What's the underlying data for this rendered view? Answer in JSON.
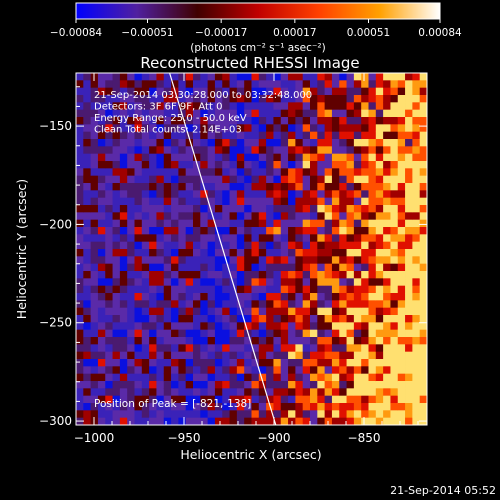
{
  "chart_data": {
    "type": "heatmap",
    "title": "Reconstructed RHESSI Image",
    "xlabel": "Heliocentric X (arcsec)",
    "ylabel": "Heliocentric Y (arcsec)",
    "xlim": [
      -1010,
      -815
    ],
    "ylim": [
      -302,
      -123
    ],
    "x_ticks": [
      -1000,
      -950,
      -900,
      -850
    ],
    "y_ticks": [
      -300,
      -250,
      -200,
      -150
    ],
    "x_tick_labels": [
      "−1000",
      "−950",
      "−900",
      "−850"
    ],
    "y_tick_labels": [
      "−300",
      "−250",
      "−200",
      "−150"
    ],
    "colorbar": {
      "range": [
        -0.00084,
        0.00084
      ],
      "ticks": [
        -0.00084,
        -0.00051,
        -0.00017,
        0.00017,
        0.00051,
        0.00084
      ],
      "tick_labels": [
        "−0.00084",
        "−0.00051",
        "−0.00017",
        "0.00017",
        "0.00051",
        "0.00084"
      ],
      "unit_label": "(photons cm⁻² s⁻¹ asec⁻²)",
      "colors": [
        "#0000ff",
        "#5020a0",
        "#400000",
        "#c00000",
        "#ff4000",
        "#ffa000",
        "#ffffff"
      ]
    },
    "info_lines": [
      "21-Sep-2014 03:30:28.000 to 03:32:48.000",
      "Detectors: 3F 6F 9F, Att 0",
      "Energy Range: 25.0 - 50.0 keV",
      "Clean      Total counts: 2.14E+03"
    ],
    "peak_label": "Position of Peak = [-821,-138]",
    "peak_position": [
      -821,
      -138
    ],
    "limb_line": {
      "x": [
        -958,
        -899
      ],
      "y": [
        -123,
        -302
      ],
      "color": "#ffffff"
    },
    "footer_timestamp": "21-Sep-2014 05:52"
  }
}
